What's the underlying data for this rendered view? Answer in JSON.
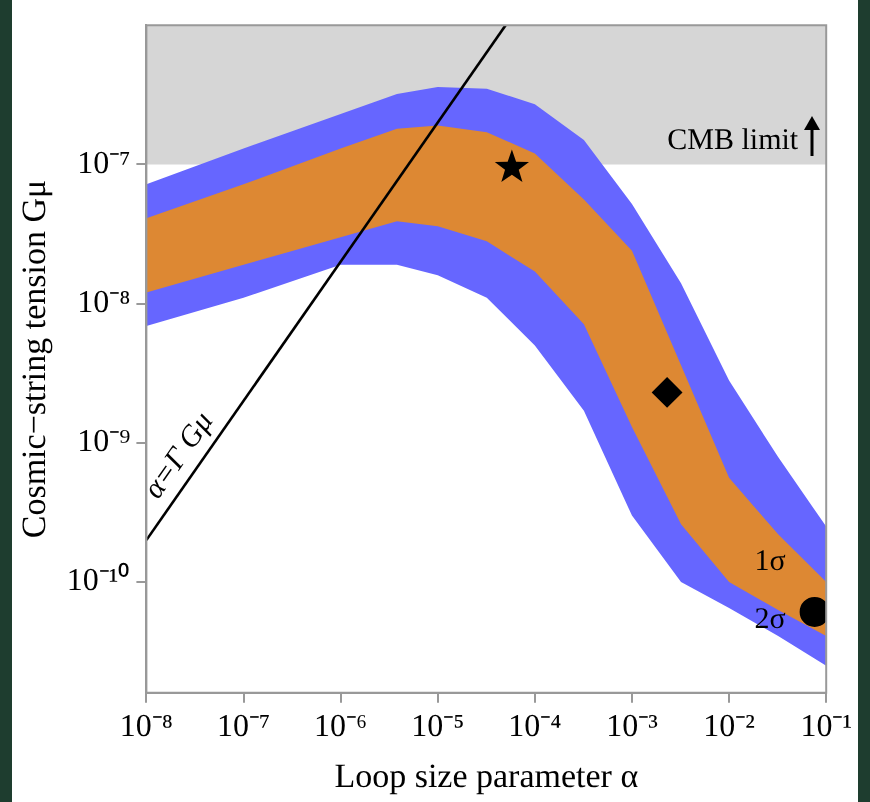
{
  "chart_data": {
    "type": "area",
    "xlabel": "Loop size parameter α",
    "ylabel": "Cosmic−string tension Gμ",
    "log": "xy",
    "grid": false,
    "legend": false,
    "xlim": [
      1e-08,
      0.1
    ],
    "ylim": [
      1.6e-11,
      1e-06
    ],
    "xticks": [
      {
        "value": 1e-08,
        "label": "10⁻⁸"
      },
      {
        "value": 1e-07,
        "label": "10⁻⁷"
      },
      {
        "value": 1e-06,
        "label": "10⁻⁶"
      },
      {
        "value": 1e-05,
        "label": "10⁻⁵"
      },
      {
        "value": 0.0001,
        "label": "10⁻⁴"
      },
      {
        "value": 0.001,
        "label": "10⁻³"
      },
      {
        "value": 0.01,
        "label": "10⁻²"
      },
      {
        "value": 0.1,
        "label": "10⁻¹"
      }
    ],
    "yticks": [
      {
        "value": 1e-10,
        "label": "10⁻¹⁰"
      },
      {
        "value": 1e-09,
        "label": "10⁻⁹"
      },
      {
        "value": 1e-08,
        "label": "10⁻⁸"
      },
      {
        "value": 1e-07,
        "label": "10⁻⁷"
      }
    ],
    "bands": [
      {
        "axis": "y",
        "from": 1e-07,
        "to": 1e-06,
        "label": "CMB limit",
        "color": "#d6d6d6"
      }
    ],
    "series": [
      {
        "color": "#6666ff",
        "x": [
          1e-08,
          1e-07,
          1e-06,
          3.8e-06,
          1e-05,
          3.2e-05,
          0.0001,
          0.00032,
          0.001,
          0.0032,
          0.01,
          0.032,
          0.1
        ],
        "values": [
          null,
          null,
          null,
          null,
          null,
          null,
          null,
          null,
          null,
          null,
          null,
          null,
          null
        ],
        "upper": [
          7.2e-08,
          1.3e-07,
          2.3e-07,
          3.2e-07,
          3.6e-07,
          3.5e-07,
          2.7e-07,
          1.5e-07,
          5.2e-08,
          1.4e-08,
          2.8e-09,
          7.9e-10,
          2.5e-10
        ],
        "lower": [
          6.9e-09,
          1.1e-08,
          1.9e-08,
          1.9e-08,
          1.6e-08,
          1.1e-08,
          5e-09,
          1.7e-09,
          3e-10,
          1e-10,
          6.5e-11,
          4.1e-11,
          2.5e-11
        ]
      },
      {
        "color": "#dd8833",
        "x": [
          1e-08,
          1e-07,
          1e-06,
          3.8e-06,
          1e-05,
          3.2e-05,
          0.0001,
          0.00032,
          0.001,
          0.0032,
          0.01,
          0.032,
          0.1
        ],
        "values": [
          null,
          null,
          null,
          null,
          null,
          null,
          null,
          null,
          null,
          null,
          null,
          null,
          null
        ],
        "upper": [
          4.1e-08,
          7.2e-08,
          1.3e-07,
          1.8e-07,
          1.9e-07,
          1.7e-07,
          1.2e-07,
          5.6e-08,
          2.4e-08,
          3.6e-09,
          5.6e-10,
          2.2e-10,
          1e-10
        ],
        "lower": [
          1.2e-08,
          1.9e-08,
          3e-08,
          3.9e-08,
          3.6e-08,
          2.8e-08,
          1.7e-08,
          7.1e-09,
          1.3e-09,
          2.6e-10,
          1e-10,
          6.3e-11,
          4.1e-11
        ]
      },
      {
        "type": "line",
        "name": "α=Γ Gμ",
        "color": "#000000",
        "x": [
          1e-08,
          5e-05
        ],
        "values": [
          2e-10,
          1e-06
        ]
      },
      {
        "type": "scatter",
        "marker": "star",
        "color": "#000000",
        "x": [
          5.8e-05
        ],
        "values": [
          9.5e-08
        ]
      },
      {
        "type": "scatter",
        "marker": "diamond",
        "color": "#000000",
        "x": [
          0.0023
        ],
        "values": [
          2.3e-09
        ]
      },
      {
        "type": "scatter",
        "marker": "circle",
        "color": "#000000",
        "x": [
          0.076
        ],
        "values": [
          6.1e-11
        ]
      }
    ],
    "annotations": [
      "1σ",
      "2σ"
    ]
  }
}
